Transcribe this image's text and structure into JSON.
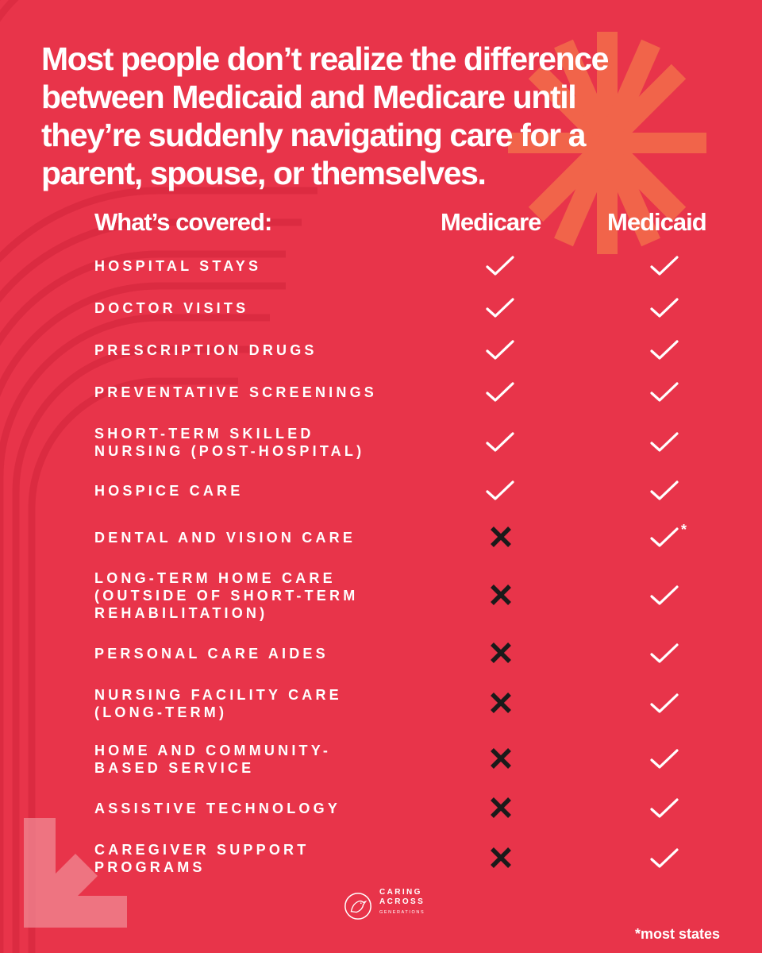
{
  "headline_lines": [
    "Most people don’t realize the difference",
    "between Medicaid and Medicare until",
    "they’re suddenly navigating care for a",
    "parent, spouse, or themselves."
  ],
  "table": {
    "label_header": "What’s covered:",
    "col_medicare": "Medicare",
    "col_medicaid": "Medicaid",
    "rows": [
      {
        "lines": [
          "HOSPITAL STAYS"
        ],
        "medicare": true,
        "medicaid": true
      },
      {
        "lines": [
          "DOCTOR VISITS"
        ],
        "medicare": true,
        "medicaid": true
      },
      {
        "lines": [
          "PRESCRIPTION DRUGS"
        ],
        "medicare": true,
        "medicaid": true
      },
      {
        "lines": [
          "PREVENTATIVE SCREENINGS"
        ],
        "medicare": true,
        "medicaid": true
      },
      {
        "lines": [
          "SHORT-TERM SKILLED",
          "NURSING (POST-HOSPITAL)"
        ],
        "medicare": true,
        "medicaid": true
      },
      {
        "lines": [
          "HOSPICE CARE"
        ],
        "medicare": true,
        "medicaid": true
      },
      {
        "lines": [
          "DENTAL AND VISION CARE"
        ],
        "medicare": false,
        "medicaid": true,
        "medicaid_note": "*"
      },
      {
        "lines": [
          "LONG-TERM HOME CARE",
          "(OUTSIDE OF SHORT-TERM",
          "REHABILITATION)"
        ],
        "medicare": false,
        "medicaid": true
      },
      {
        "lines": [
          "PERSONAL CARE AIDES"
        ],
        "medicare": false,
        "medicaid": true
      },
      {
        "lines": [
          "NURSING FACILITY CARE",
          "(LONG-TERM)"
        ],
        "medicare": false,
        "medicaid": true
      },
      {
        "lines": [
          "HOME AND COMMUNITY-",
          "BASED SERVICE"
        ],
        "medicare": false,
        "medicaid": true
      },
      {
        "lines": [
          "ASSISTIVE TECHNOLOGY"
        ],
        "medicare": false,
        "medicaid": true
      },
      {
        "lines": [
          "CAREGIVER SUPPORT",
          "PROGRAMS"
        ],
        "medicare": false,
        "medicaid": true
      }
    ]
  },
  "logo": {
    "line1": "CARING",
    "line2": "ACROSS",
    "line3": "GENERATIONS",
    "icon": "bird-in-circle-icon"
  },
  "footnote": "*most states",
  "colors": {
    "background": "#e8344a",
    "text": "#ffffff",
    "cross": "#1a1a1a",
    "burst": "#f26a4b"
  }
}
